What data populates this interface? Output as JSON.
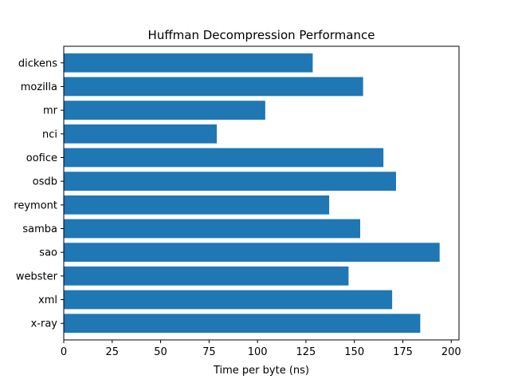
{
  "chart_data": {
    "type": "bar",
    "orientation": "horizontal",
    "title": "Huffman Decompression Performance",
    "xlabel": "Time per byte (ns)",
    "ylabel": "",
    "xlim": [
      0,
      204
    ],
    "xticks": [
      0,
      25,
      50,
      75,
      100,
      125,
      150,
      175,
      200
    ],
    "categories": [
      "dickens",
      "mozilla",
      "mr",
      "nci",
      "oofice",
      "osdb",
      "reymont",
      "samba",
      "sao",
      "webster",
      "xml",
      "x-ray"
    ],
    "values": [
      128.5,
      154.5,
      104,
      79,
      165,
      171.5,
      137,
      153,
      194,
      147,
      169.5,
      184
    ],
    "bar_color": "#1f77b4",
    "grid": false,
    "legend": "none"
  }
}
